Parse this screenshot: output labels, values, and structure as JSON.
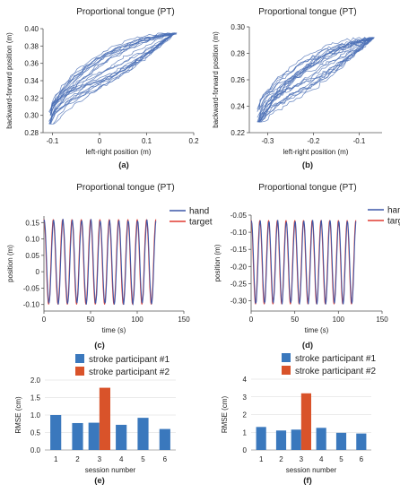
{
  "colors": {
    "trajectory": "#4a6fb5",
    "hand": "#3b56a8",
    "target": "#e03a30",
    "stroke1": "#3a78bd",
    "stroke2": "#d9532a"
  },
  "chart_data": [
    {
      "id": "a",
      "type": "line",
      "title": "Proportional tongue  (PT)",
      "xlabel": "left-right position (m)",
      "ylabel": "backward-forward position (m)",
      "panel_label": "(a)",
      "xlim": [
        -0.12,
        0.2
      ],
      "ylim": [
        0.28,
        0.4
      ],
      "xticks": [
        "-0.1",
        "0",
        "0.1",
        "0.2"
      ],
      "xtick_values": [
        -0.1,
        0,
        0.1,
        0.2
      ],
      "yticks": [
        "0.28",
        "0.30",
        "0.32",
        "0.34",
        "0.36",
        "0.38",
        "0.40"
      ],
      "ytick_values": [
        0.28,
        0.3,
        0.32,
        0.34,
        0.36,
        0.38,
        0.4
      ],
      "trajectory": {
        "x_range": [
          -0.105,
          0.16
        ],
        "y_range": [
          0.29,
          0.395
        ],
        "loops": 12
      }
    },
    {
      "id": "b",
      "type": "line",
      "title": "Proportional tongue (PT)",
      "xlabel": "left-right position (m)",
      "ylabel": "backward-forward position (m)",
      "panel_label": "(b)",
      "xlim": [
        -0.34,
        -0.05
      ],
      "ylim": [
        0.22,
        0.3
      ],
      "xticks": [
        "-0.3",
        "-0.2",
        "-0.1"
      ],
      "xtick_values": [
        -0.3,
        -0.2,
        -0.1
      ],
      "yticks": [
        "0.22",
        "0.24",
        "0.26",
        "0.28",
        "0.30"
      ],
      "ytick_values": [
        0.22,
        0.24,
        0.26,
        0.28,
        0.3
      ],
      "trajectory": {
        "x_range": [
          -0.32,
          -0.07
        ],
        "y_range": [
          0.228,
          0.292
        ],
        "loops": 12
      }
    },
    {
      "id": "c",
      "type": "line",
      "title": "Proportional tongue (PT)",
      "xlabel": "time (s)",
      "ylabel": "position (m)",
      "panel_label": "(c)",
      "xlim": [
        0,
        150
      ],
      "ylim": [
        -0.12,
        0.17
      ],
      "xticks": [
        "0",
        "50",
        "100",
        "150"
      ],
      "xtick_values": [
        0,
        50,
        100,
        150
      ],
      "yticks": [
        "-0.10",
        "-0.05",
        "0",
        "0.05",
        "0.10",
        "0.15"
      ],
      "ytick_values": [
        -0.1,
        -0.05,
        0,
        0.05,
        0.1,
        0.15
      ],
      "legend": [
        "hand",
        "target"
      ],
      "legend_position": "top-right",
      "signal": {
        "duration": 120,
        "period": 10,
        "min": -0.1,
        "max": 0.16
      }
    },
    {
      "id": "d",
      "type": "line",
      "title": "Proportional tongue (PT)",
      "xlabel": "time (s)",
      "ylabel": "position (m)",
      "panel_label": "(d)",
      "xlim": [
        0,
        150
      ],
      "ylim": [
        -0.33,
        -0.05
      ],
      "xticks": [
        "0",
        "50",
        "100",
        "150"
      ],
      "xtick_values": [
        0,
        50,
        100,
        150
      ],
      "yticks": [
        "-0.05",
        "-0.10",
        "-0.15",
        "-0.20",
        "-0.25",
        "-0.30"
      ],
      "ytick_values": [
        -0.05,
        -0.1,
        -0.15,
        -0.2,
        -0.25,
        -0.3
      ],
      "legend": [
        "hand",
        "target"
      ],
      "legend_position": "top-right",
      "signal": {
        "duration": 120,
        "period": 10,
        "min": -0.31,
        "max": -0.065
      }
    },
    {
      "id": "e",
      "type": "bar",
      "xlabel": "session number",
      "ylabel": "RMSE (cm)",
      "panel_label": "(e)",
      "ylim": [
        0,
        2.0
      ],
      "yticks": [
        "0.0",
        "0.5",
        "1.0",
        "1.5",
        "2.0"
      ],
      "ytick_values": [
        0,
        0.5,
        1.0,
        1.5,
        2.0
      ],
      "categories": [
        "1",
        "2",
        "3",
        "4",
        "5",
        "6"
      ],
      "legend_position": "top",
      "grid": true,
      "series": [
        {
          "name": "stroke participant #1",
          "values": [
            1.0,
            0.77,
            0.78,
            0.72,
            0.92,
            0.6
          ]
        },
        {
          "name": "stroke participant #2",
          "values": [
            null,
            null,
            1.78,
            null,
            null,
            null
          ]
        }
      ]
    },
    {
      "id": "f",
      "type": "bar",
      "xlabel": "session number",
      "ylabel": "RMSE (cm)",
      "panel_label": "(f)",
      "ylim": [
        0,
        4
      ],
      "yticks": [
        "0",
        "1",
        "2",
        "3",
        "4"
      ],
      "ytick_values": [
        0,
        1,
        2,
        3,
        4
      ],
      "categories": [
        "1",
        "2",
        "3",
        "4",
        "5",
        "6"
      ],
      "legend_position": "top",
      "grid": true,
      "series": [
        {
          "name": "stroke participant #1",
          "values": [
            1.3,
            1.1,
            1.15,
            1.25,
            0.97,
            0.93
          ]
        },
        {
          "name": "stroke participant #2",
          "values": [
            null,
            null,
            3.2,
            null,
            null,
            null
          ]
        }
      ]
    }
  ]
}
